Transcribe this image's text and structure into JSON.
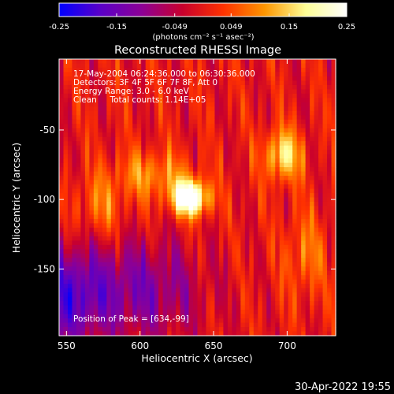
{
  "chart_data": {
    "type": "heatmap",
    "title": "Reconstructed RHESSI Image",
    "xlabel": "Heliocentric X (arcsec)",
    "ylabel": "Heliocentric Y (arcsec)",
    "xlim": [
      545,
      733
    ],
    "ylim": [
      -198,
      1
    ],
    "x_ticks": [
      550,
      600,
      650,
      700
    ],
    "y_ticks": [
      -50,
      -100,
      -150
    ],
    "info_lines": [
      "17-May-2004 06:24:36.000 to 06:30:36.000",
      "Detectors: 3F 4F 5F 6F 7F 8F, Att 0",
      "Energy Range: 3.0 - 6.0 keV",
      "Clean     Total counts: 1.14E+05"
    ],
    "peak_label": "Position of Peak = [634,-99]",
    "peak": [
      634,
      -99
    ],
    "colorbar": {
      "range": [
        -0.25,
        0.25
      ],
      "ticks": [
        "-0.25",
        "-0.15",
        "-0.049",
        "0.049",
        "0.15",
        "0.25"
      ],
      "unit_label": "(photons cm⁻² s⁻¹ asec⁻²)",
      "colors": [
        "#0000ff",
        "#5a00c8",
        "#8c0096",
        "#c8002d",
        "#ff3200",
        "#ff9600",
        "#ffff96",
        "#ffffff"
      ]
    },
    "sources": [
      {
        "x": 634,
        "y": -99,
        "amp": 0.3,
        "sx": 9,
        "sy": 9
      },
      {
        "x": 697,
        "y": -68,
        "amp": 0.17,
        "sx": 9,
        "sy": 13
      },
      {
        "x": 608,
        "y": -82,
        "amp": 0.1,
        "sx": 18,
        "sy": 12
      },
      {
        "x": 573,
        "y": -105,
        "amp": 0.08,
        "sx": 12,
        "sy": 16
      },
      {
        "x": 712,
        "y": -140,
        "amp": 0.08,
        "sx": 10,
        "sy": 22
      },
      {
        "x": 600,
        "y": -165,
        "amp": -0.12,
        "sx": 30,
        "sy": 25
      },
      {
        "x": 550,
        "y": -170,
        "amp": -0.15,
        "sx": 18,
        "sy": 25
      }
    ]
  },
  "footer_timestamp": "30-Apr-2022 19:55"
}
